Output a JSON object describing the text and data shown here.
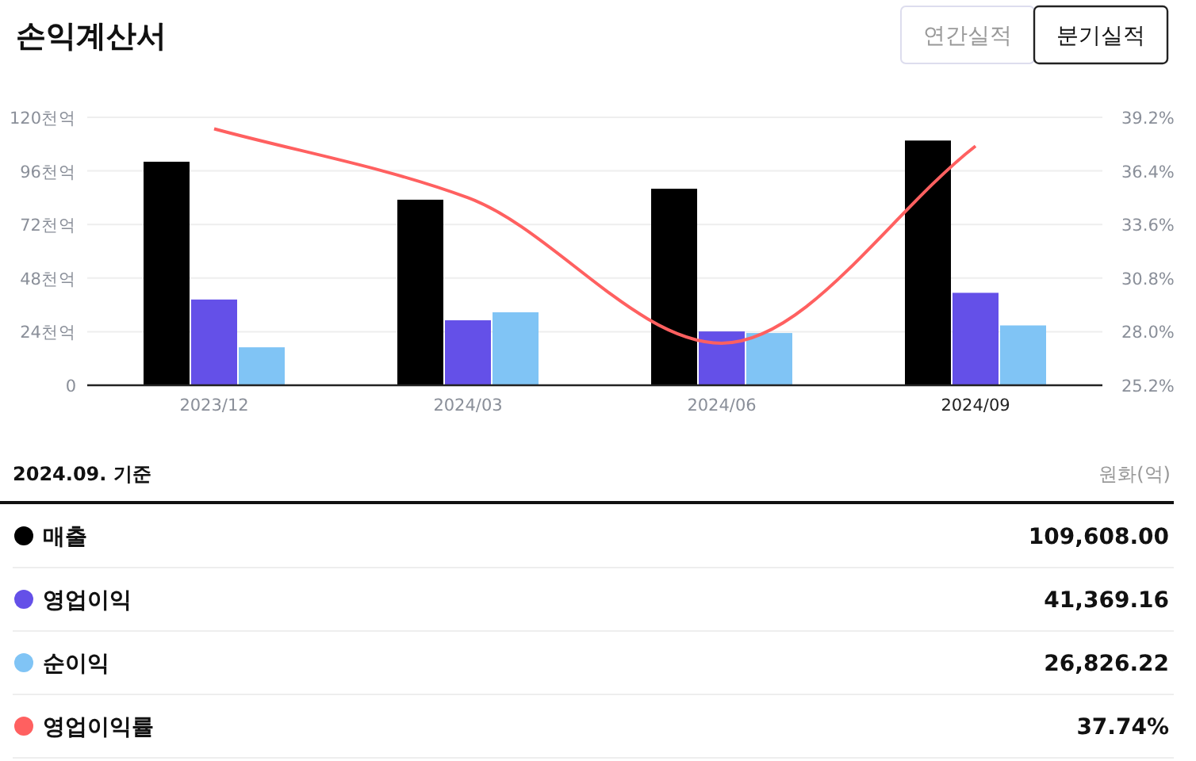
{
  "chart_data": {
    "type": "bar",
    "title": "손익계산서",
    "categories": [
      "2023/12",
      "2024/03",
      "2024/06",
      "2024/09"
    ],
    "series": [
      {
        "name": "매출",
        "color": "#000000",
        "values": [
          100.1,
          83.1,
          88.0,
          109.6
        ]
      },
      {
        "name": "영업이익",
        "color": "#6450e8",
        "values": [
          38.4,
          29.1,
          24.1,
          41.4
        ]
      },
      {
        "name": "순이익",
        "color": "#80c4f5",
        "values": [
          17.0,
          32.7,
          23.4,
          26.8
        ]
      },
      {
        "name": "영업이익률",
        "color": "#ff6060",
        "type": "line",
        "axis": "y2",
        "values": [
          38.6,
          35.0,
          27.4,
          37.7
        ]
      }
    ],
    "ylim": [
      0,
      120
    ],
    "yticks": [
      0,
      {
        "value": 24,
        "label": "24천억"
      },
      {
        "value": 48,
        "label": "48천억"
      },
      {
        "value": 72,
        "label": "72천억"
      },
      {
        "value": 96,
        "label": "96천억"
      },
      {
        "value": 120,
        "label": "120천억"
      }
    ],
    "y2lim": [
      25.2,
      39.2
    ],
    "y2ticks": [
      {
        "value": 25.2,
        "label": "25.2%"
      },
      {
        "value": 28.0,
        "label": "28.0%"
      },
      {
        "value": 30.8,
        "label": "30.8%"
      },
      {
        "value": 33.6,
        "label": "33.6%"
      },
      {
        "value": 36.4,
        "label": "36.4%"
      },
      {
        "value": 39.2,
        "label": "39.2%"
      }
    ],
    "grid": "y",
    "legend": "bottom",
    "marker": "none",
    "annotations": [
      "연간실적",
      "분기실적",
      "2024.09. 기준",
      "원화(억)",
      "109,608.00",
      "41,369.16",
      "26,826.22",
      "37.74%"
    ]
  }
}
